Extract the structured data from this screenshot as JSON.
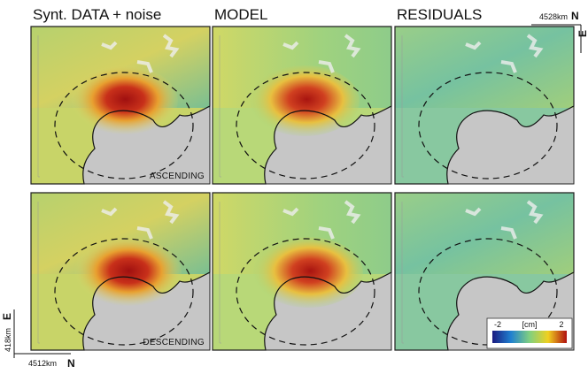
{
  "columns": [
    {
      "title": "Synt. DATA + noise"
    },
    {
      "title": "MODEL"
    },
    {
      "title": "RESIDUALS"
    }
  ],
  "rows": [
    {
      "label": "ASCENDING"
    },
    {
      "label": "DESCENDING"
    }
  ],
  "corner_top": {
    "value": "4528km",
    "axis": "N"
  },
  "corner_top_right": {
    "axis": "E"
  },
  "corner_bottom_y": {
    "value": "418km",
    "axis": "E"
  },
  "corner_bottom_x": {
    "value": "4512km",
    "axis": "N"
  },
  "colorbar": {
    "min": "-2",
    "unit": "[cm]",
    "max": "2"
  }
}
